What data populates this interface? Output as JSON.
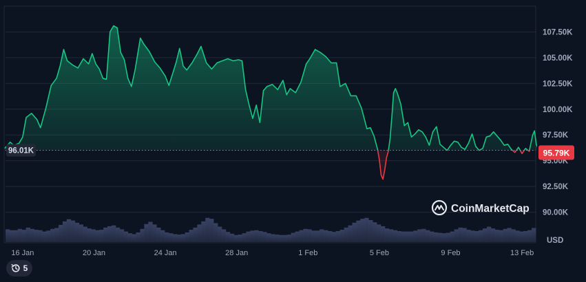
{
  "colors": {
    "background": "#0d1421",
    "up": "#16c784",
    "down": "#ea3943",
    "grid": "#222838",
    "volume": "#2d3550",
    "label_bg": "#222838"
  },
  "brand": {
    "name": "CoinMarketCap",
    "icon": "coinmarketcap-logo-icon"
  },
  "history_button": {
    "icon": "history-icon",
    "count": "5"
  },
  "chart_data": {
    "type": "line",
    "currency_label": "USD",
    "x_ticks": [
      "16 Jan",
      "20 Jan",
      "24 Jan",
      "28 Jan",
      "1 Feb",
      "5 Feb",
      "9 Feb",
      "13 Feb"
    ],
    "x_range": [
      "15 Jan",
      "14 Feb"
    ],
    "y_ticks": [
      "90.00K",
      "92.50K",
      "95.00K",
      "97.50K",
      "100.00K",
      "102.50K",
      "105.00K",
      "107.50K"
    ],
    "ylim": [
      88500,
      110000
    ],
    "reference_value": 96010,
    "reference_label": "96.01K",
    "current_value": 95790,
    "current_label": "95.79K",
    "grid": true,
    "series": [
      {
        "name": "",
        "points": [
          [
            0.0,
            96200
          ],
          [
            0.3,
            96800
          ],
          [
            0.5,
            96500
          ],
          [
            0.8,
            96700
          ],
          [
            1.0,
            97300
          ],
          [
            1.2,
            99200
          ],
          [
            1.5,
            99600
          ],
          [
            1.8,
            99000
          ],
          [
            2.0,
            98200
          ],
          [
            2.3,
            100100
          ],
          [
            2.6,
            102300
          ],
          [
            2.9,
            103000
          ],
          [
            3.1,
            104200
          ],
          [
            3.3,
            105800
          ],
          [
            3.5,
            104700
          ],
          [
            3.8,
            104300
          ],
          [
            4.1,
            104000
          ],
          [
            4.4,
            104900
          ],
          [
            4.7,
            104400
          ],
          [
            4.9,
            105400
          ],
          [
            5.1,
            104400
          ],
          [
            5.3,
            103900
          ],
          [
            5.5,
            103000
          ],
          [
            5.7,
            102900
          ],
          [
            5.9,
            107500
          ],
          [
            6.1,
            108100
          ],
          [
            6.3,
            107900
          ],
          [
            6.5,
            105500
          ],
          [
            6.7,
            104800
          ],
          [
            6.9,
            103000
          ],
          [
            7.1,
            102200
          ],
          [
            7.3,
            103800
          ],
          [
            7.6,
            106900
          ],
          [
            7.8,
            106300
          ],
          [
            8.1,
            105600
          ],
          [
            8.4,
            104600
          ],
          [
            8.7,
            104000
          ],
          [
            9.0,
            103200
          ],
          [
            9.2,
            102300
          ],
          [
            9.4,
            103400
          ],
          [
            9.6,
            104500
          ],
          [
            9.8,
            105900
          ],
          [
            10.0,
            104200
          ],
          [
            10.2,
            103800
          ],
          [
            10.5,
            104500
          ],
          [
            10.8,
            105400
          ],
          [
            11.0,
            106100
          ],
          [
            11.3,
            104500
          ],
          [
            11.6,
            103900
          ],
          [
            11.9,
            104500
          ],
          [
            12.2,
            104700
          ],
          [
            12.5,
            104900
          ],
          [
            12.8,
            104700
          ],
          [
            13.1,
            104800
          ],
          [
            13.3,
            104700
          ],
          [
            13.5,
            101900
          ],
          [
            13.7,
            100400
          ],
          [
            13.9,
            99100
          ],
          [
            14.1,
            100400
          ],
          [
            14.3,
            98700
          ],
          [
            14.5,
            101800
          ],
          [
            14.7,
            102200
          ],
          [
            15.0,
            102400
          ],
          [
            15.3,
            101900
          ],
          [
            15.6,
            102800
          ],
          [
            15.8,
            101400
          ],
          [
            16.0,
            102000
          ],
          [
            16.3,
            101600
          ],
          [
            16.6,
            102600
          ],
          [
            16.9,
            104400
          ],
          [
            17.1,
            104900
          ],
          [
            17.4,
            105800
          ],
          [
            17.7,
            105500
          ],
          [
            18.0,
            105100
          ],
          [
            18.3,
            104500
          ],
          [
            18.6,
            104500
          ],
          [
            18.8,
            102200
          ],
          [
            19.1,
            102500
          ],
          [
            19.4,
            101300
          ],
          [
            19.7,
            101300
          ],
          [
            20.0,
            100100
          ],
          [
            20.3,
            98100
          ],
          [
            20.5,
            98200
          ],
          [
            20.7,
            97400
          ],
          [
            20.9,
            96100
          ],
          [
            21.0,
            95100
          ],
          [
            21.1,
            93600
          ],
          [
            21.2,
            93200
          ],
          [
            21.3,
            94100
          ],
          [
            21.4,
            95300
          ],
          [
            21.5,
            95900
          ],
          [
            21.6,
            97100
          ],
          [
            21.7,
            99200
          ],
          [
            21.8,
            101600
          ],
          [
            21.9,
            102000
          ],
          [
            22.0,
            101600
          ],
          [
            22.2,
            100500
          ],
          [
            22.4,
            98400
          ],
          [
            22.6,
            98700
          ],
          [
            22.8,
            97300
          ],
          [
            23.0,
            97600
          ],
          [
            23.2,
            98000
          ],
          [
            23.4,
            97800
          ],
          [
            23.6,
            97300
          ],
          [
            23.8,
            96500
          ],
          [
            24.0,
            97800
          ],
          [
            24.2,
            98300
          ],
          [
            24.4,
            96600
          ],
          [
            24.6,
            96300
          ],
          [
            24.8,
            96000
          ],
          [
            25.0,
            96500
          ],
          [
            25.2,
            96900
          ],
          [
            25.4,
            96800
          ],
          [
            25.6,
            96300
          ],
          [
            25.8,
            96100
          ],
          [
            26.0,
            96700
          ],
          [
            26.2,
            97600
          ],
          [
            26.4,
            96400
          ],
          [
            26.6,
            96000
          ],
          [
            26.8,
            96200
          ],
          [
            27.0,
            97300
          ],
          [
            27.2,
            97400
          ],
          [
            27.4,
            97800
          ],
          [
            27.6,
            97400
          ],
          [
            27.8,
            97000
          ],
          [
            28.0,
            96500
          ],
          [
            28.2,
            96600
          ],
          [
            28.4,
            96100
          ],
          [
            28.6,
            95800
          ],
          [
            28.8,
            96300
          ],
          [
            29.0,
            95700
          ],
          [
            29.2,
            96200
          ],
          [
            29.4,
            95900
          ],
          [
            29.6,
            97500
          ],
          [
            29.7,
            97900
          ],
          [
            29.8,
            96600
          ],
          [
            30.0,
            95800
          ]
        ]
      }
    ],
    "volume": [
      0.29,
      0.27,
      0.27,
      0.3,
      0.28,
      0.33,
      0.3,
      0.28,
      0.27,
      0.24,
      0.26,
      0.3,
      0.32,
      0.39,
      0.47,
      0.52,
      0.49,
      0.44,
      0.4,
      0.35,
      0.31,
      0.29,
      0.27,
      0.28,
      0.33,
      0.36,
      0.38,
      0.33,
      0.29,
      0.24,
      0.2,
      0.18,
      0.22,
      0.3,
      0.41,
      0.46,
      0.4,
      0.33,
      0.27,
      0.22,
      0.2,
      0.18,
      0.17,
      0.18,
      0.22,
      0.28,
      0.33,
      0.4,
      0.47,
      0.55,
      0.53,
      0.43,
      0.35,
      0.29,
      0.23,
      0.19,
      0.16,
      0.17,
      0.2,
      0.24,
      0.26,
      0.27,
      0.25,
      0.23,
      0.2,
      0.18,
      0.17,
      0.16,
      0.16,
      0.17,
      0.21,
      0.24,
      0.27,
      0.3,
      0.29,
      0.26,
      0.26,
      0.29,
      0.27,
      0.25,
      0.23,
      0.25,
      0.28,
      0.33,
      0.38,
      0.44,
      0.49,
      0.53,
      0.55,
      0.5,
      0.45,
      0.4,
      0.36,
      0.31,
      0.29,
      0.27,
      0.25,
      0.24,
      0.24,
      0.24,
      0.26,
      0.29,
      0.3,
      0.27,
      0.24,
      0.22,
      0.21,
      0.2,
      0.21,
      0.24,
      0.29,
      0.33,
      0.32,
      0.28,
      0.26,
      0.25,
      0.27,
      0.31,
      0.35,
      0.31,
      0.28,
      0.27,
      0.3,
      0.32,
      0.29,
      0.26,
      0.24,
      0.25,
      0.27,
      0.32
    ]
  }
}
